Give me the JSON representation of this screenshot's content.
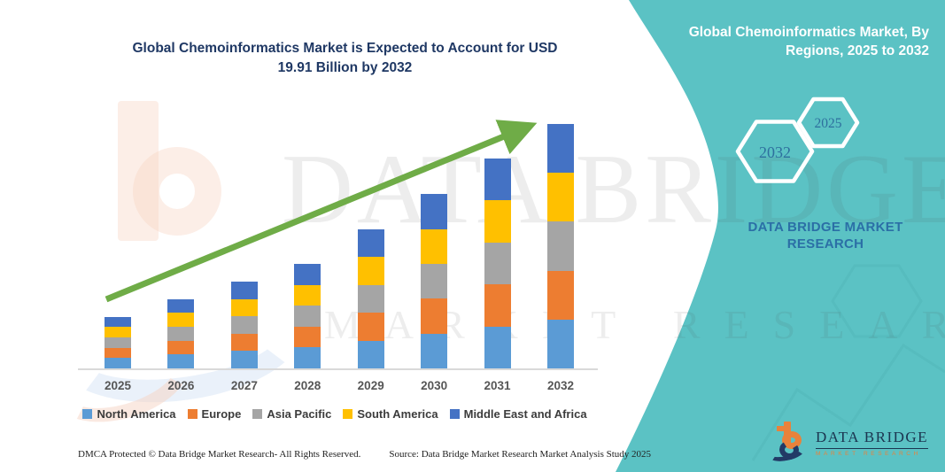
{
  "title": "Global Chemoinformatics Market is Expected to Account for USD 19.91 Billion by 2032",
  "panel": {
    "heading": "Global Chemoinformatics Market, By Regions, 2025 to 2032",
    "hexagon_years": {
      "large": "2032",
      "small": "2025"
    },
    "brand": "DATA BRIDGE MARKET RESEARCH",
    "teal_color": "#5bc2c4"
  },
  "logo": {
    "name": "DATA BRIDGE",
    "tagline": "MARKET RESEARCH"
  },
  "watermark": {
    "text1": "DATA BRIDGE",
    "text2": "MARKET RESEARCH"
  },
  "footer": {
    "dmca": "DMCA Protected © Data Bridge Market Research-  All Rights Reserved.",
    "source": "Source: Data Bridge Market Research  Market Analysis Study 2025"
  },
  "chart_data": {
    "type": "bar",
    "stacked": true,
    "title": "Global Chemoinformatics Market is Expected to Account for USD 19.91 Billion by 2032",
    "unit": "USD Billion",
    "categories": [
      "2025",
      "2026",
      "2027",
      "2028",
      "2029",
      "2030",
      "2031",
      "2032"
    ],
    "series": [
      {
        "name": "North America",
        "color": "#5b9bd5",
        "values": [
          0.84,
          1.13,
          1.41,
          1.7,
          2.27,
          2.84,
          3.42,
          3.98
        ]
      },
      {
        "name": "Europe",
        "color": "#ed7d31",
        "values": [
          0.84,
          1.13,
          1.41,
          1.7,
          2.27,
          2.84,
          3.42,
          3.98
        ]
      },
      {
        "name": "Asia Pacific",
        "color": "#a5a5a5",
        "values": [
          0.84,
          1.13,
          1.41,
          1.7,
          2.27,
          2.84,
          3.42,
          3.98
        ]
      },
      {
        "name": "South America",
        "color": "#ffc000",
        "values": [
          0.84,
          1.13,
          1.41,
          1.7,
          2.27,
          2.84,
          3.42,
          3.98
        ]
      },
      {
        "name": "Middle East and Africa",
        "color": "#4472c4",
        "values": [
          0.84,
          1.13,
          1.41,
          1.7,
          2.27,
          2.84,
          3.42,
          3.98
        ]
      }
    ],
    "totals_estimated": [
      4.2,
      5.65,
      7.05,
      8.5,
      11.35,
      14.2,
      17.1,
      19.91
    ],
    "ylim": [
      0,
      20
    ],
    "y_axis_visible": false,
    "x_axis_visible": true,
    "gridlines": false,
    "legend_position": "bottom",
    "annotations": [
      "green upward trend arrow from above 2025 bar to above 2032 bar"
    ],
    "note": "Values estimated from bar heights; each region renders as an equal fifth of the yearly total; 2032 total stated in title as USD 19.91 billion.",
    "arrow_color": "#6fac47"
  }
}
